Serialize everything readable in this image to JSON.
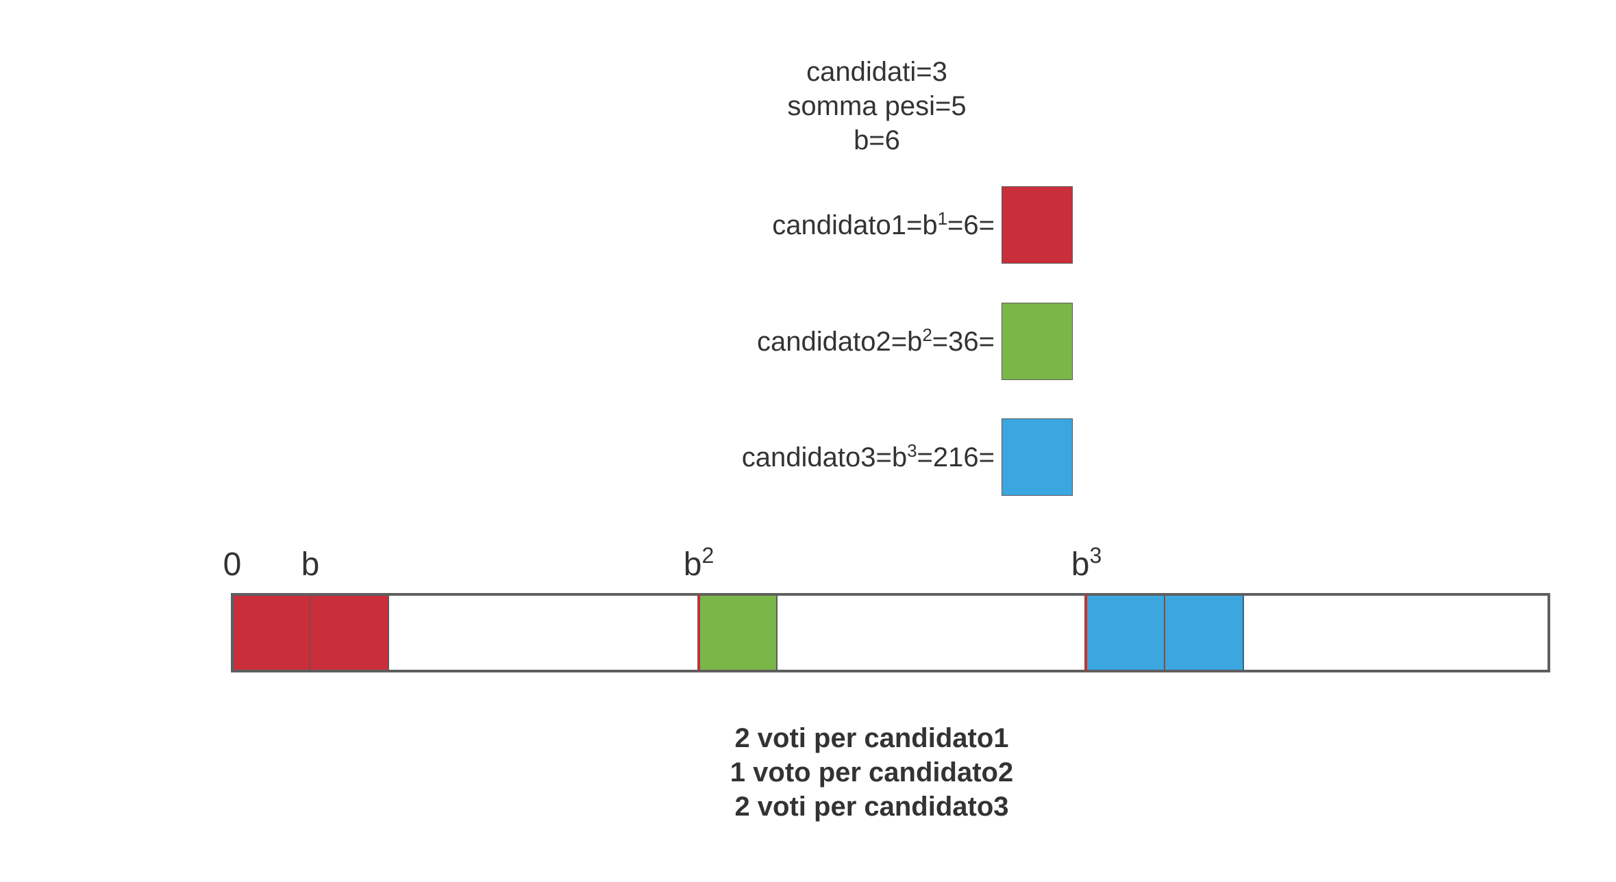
{
  "params": {
    "candidates": "candidati=3",
    "weight_sum": "somma pesi=5",
    "base": "b=6"
  },
  "candidates": [
    {
      "prefix": "candidato1=b",
      "exp": "1",
      "suffix": "=6=",
      "color": "#c92e3b"
    },
    {
      "prefix": "candidato2=b",
      "exp": "2",
      "suffix": "=36=",
      "color": "#7ab648"
    },
    {
      "prefix": "candidato3=b",
      "exp": "3",
      "suffix": "=216=",
      "color": "#3ba6df"
    }
  ],
  "axis": {
    "ticks": [
      {
        "base": "0",
        "exp": ""
      },
      {
        "base": "b",
        "exp": ""
      },
      {
        "base": "b",
        "exp": "2"
      },
      {
        "base": "b",
        "exp": "3"
      }
    ]
  },
  "cells": [
    {
      "color": "#c92e3b"
    },
    {
      "color": "#c92e3b"
    },
    {
      "color": "#7ab648"
    },
    {
      "color": "#3ba6df"
    },
    {
      "color": "#3ba6df"
    }
  ],
  "summary": [
    "2 voti per candidato1",
    "1 voto per candidato2",
    "2 voti per candidato3"
  ]
}
